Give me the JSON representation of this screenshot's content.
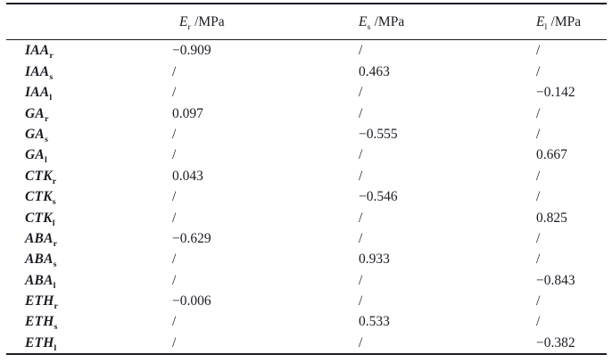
{
  "page": {
    "background": "#ffffff",
    "text_color": "#1b1b24"
  },
  "table": {
    "description": "Correlation coefficients between hormone contents and elastic moduli",
    "columns": [
      {
        "symbol": "E",
        "sub": "r",
        "unit": "/MPa"
      },
      {
        "symbol": "E",
        "sub": "s",
        "unit": "/MPa"
      },
      {
        "symbol": "E",
        "sub": "l",
        "unit": "/MPa"
      }
    ],
    "rows": [
      {
        "label": "IAA",
        "sub": "r",
        "values": [
          "−0.909",
          "/",
          "/"
        ]
      },
      {
        "label": "IAA",
        "sub": "s",
        "values": [
          "/",
          "0.463",
          "/"
        ]
      },
      {
        "label": "IAA",
        "sub": "l",
        "values": [
          "/",
          "/",
          "−0.142"
        ]
      },
      {
        "label": "GA",
        "sub": "r",
        "values": [
          "0.097",
          "/",
          "/"
        ]
      },
      {
        "label": "GA",
        "sub": "s",
        "values": [
          "/",
          "−0.555",
          "/"
        ]
      },
      {
        "label": "GA",
        "sub": "l",
        "values": [
          "/",
          "/",
          "0.667"
        ]
      },
      {
        "label": "CTK",
        "sub": "r",
        "values": [
          "0.043",
          "/",
          "/"
        ]
      },
      {
        "label": "CTK",
        "sub": "s",
        "values": [
          "/",
          "−0.546",
          "/"
        ]
      },
      {
        "label": "CTK",
        "sub": "l",
        "values": [
          "/",
          "/",
          "0.825"
        ]
      },
      {
        "label": "ABA",
        "sub": "r",
        "values": [
          "−0.629",
          "/",
          "/"
        ]
      },
      {
        "label": "ABA",
        "sub": "s",
        "values": [
          "/",
          "0.933",
          "/"
        ]
      },
      {
        "label": "ABA",
        "sub": "l",
        "values": [
          "/",
          "/",
          "−0.843"
        ]
      },
      {
        "label": "ETH",
        "sub": "r",
        "values": [
          "−0.006",
          "/",
          "/"
        ]
      },
      {
        "label": "ETH",
        "sub": "s",
        "values": [
          "/",
          "0.533",
          "/"
        ]
      },
      {
        "label": "ETH",
        "sub": "l",
        "values": [
          "/",
          "/",
          "−0.382"
        ]
      }
    ]
  }
}
